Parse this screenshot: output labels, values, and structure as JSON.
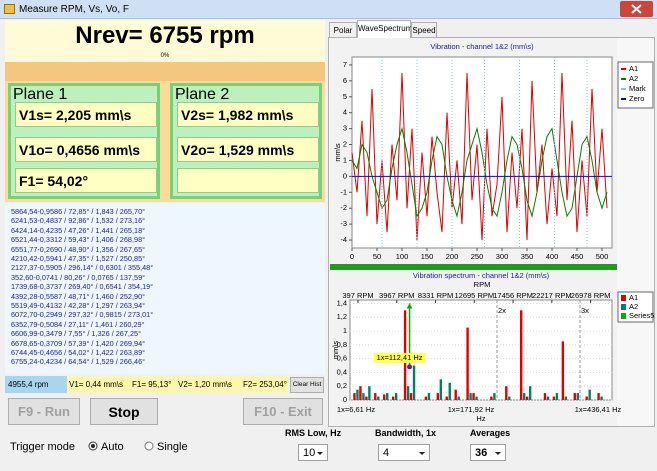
{
  "window": {
    "title": "Measure RPM, Vs, Vo, F"
  },
  "header": {
    "nrev": "Nrev= 6755 rpm",
    "progress": "0%"
  },
  "plane1": {
    "title": "Plane 1",
    "fields": [
      "V1s= 2,205 mm\\s",
      "V1o= 0,4656 mm\\s",
      "F1= 54,02°"
    ]
  },
  "plane2": {
    "title": "Plane 2",
    "fields": [
      "V2s= 1,982 mm\\s",
      "V2o= 1,529 mm\\s"
    ]
  },
  "history": [
    "5864,54-0,9586 / 72,85° / 1,843 / 265,70°",
    "6241,53-0,4837 / 92,86° / 1,532 / 273,16°",
    "6424,14-0,4235 / 47,26° / 1,441 / 265,18°",
    "6521,44-0,3312 / 59,43° / 1,406 / 268,98°",
    "6551,77-0,2690 / 48,90° / 1,356 / 267,65°",
    "4210,42-0,5941 / 47,35° / 1,527 / 250,85°",
    "2127,37-0,5905 / 296,14° / 0,6301 / 355,48°",
    "352,60-0,0741 / 80,26° / 0,0765 / 137,59°",
    "1739,68-0,3737 / 269,40° / 0,6541 / 354,19°",
    "4392,28-0,5587 / 48,71° / 1,460 / 252,90°",
    "5519,49-0,4132 / 42,28° / 1,297 / 263,94°",
    "6072,70-0,2949 / 297,32° / 0,9815 / 273,01°",
    "6352,79-0,5084 / 27,11° / 1,461 / 260,29°",
    "6606,99-0,3479 / 7,55° / 1,326 / 267,25°",
    "6678,65-0,3709 / 57,39° / 1,420 / 269,94°",
    "6744,45-0,4656 / 54,02° / 1,422 / 263,89°",
    "6755,24-0,4234 / 64,54° / 1,529 / 266,46°"
  ],
  "status": {
    "rpm": "4955,4 rpm",
    "v1": "V1= 0,44 mm\\s",
    "f1": "F1= 95,13°",
    "v2": "V2= 1,20 mm\\s",
    "f2": "F2= 253,04°",
    "clear": "Clear Hist"
  },
  "buttons": {
    "run": "F9 - Run",
    "stop": "Stop",
    "exit": "F10 - Exit"
  },
  "controls": {
    "trigger_label": "Trigger mode",
    "auto": "Auto",
    "single": "Single",
    "rms_label": "RMS Low, Hz",
    "rms_value": "10",
    "bandwidth_label": "Bandwidth, 1x",
    "bandwidth_value": "4",
    "averages_label": "Averages",
    "averages_value": "36"
  },
  "tabs": [
    "Polar",
    "WaveSpectrum",
    "Speed"
  ],
  "wave_chart": {
    "type": "line",
    "title": "Vibration - channel 1&2 (mm\\s)",
    "y_label": "mm\\s",
    "x_label": "RPM",
    "xlim": [
      0,
      520
    ],
    "ylim": [
      -4.5,
      7.5
    ],
    "xticks": [
      0,
      50,
      100,
      150,
      200,
      250,
      300,
      350,
      400,
      450,
      500
    ],
    "yticks": [
      -4,
      -3,
      -2,
      -1,
      0,
      1,
      2,
      3,
      4,
      5,
      6,
      7
    ],
    "x": [
      0,
      10,
      20,
      30,
      40,
      50,
      60,
      70,
      80,
      90,
      100,
      110,
      120,
      130,
      140,
      150,
      160,
      170,
      180,
      190,
      200,
      210,
      220,
      230,
      240,
      250,
      260,
      270,
      280,
      290,
      300,
      310,
      320,
      330,
      340,
      350,
      360,
      370,
      380,
      390,
      400,
      410,
      420,
      430,
      440,
      450,
      460,
      470,
      480,
      490,
      500,
      510
    ],
    "series": [
      {
        "name": "A1",
        "color": "#e00000",
        "values": [
          1.5,
          -1,
          3.5,
          -2.5,
          5.5,
          -3,
          1,
          -3.5,
          2,
          -1.5,
          6.5,
          -2,
          3,
          -4,
          1.5,
          -2.5,
          2.5,
          -1,
          -3.5,
          4,
          -2,
          1,
          -3,
          6.5,
          -1.5,
          2,
          -4,
          3,
          -2.5,
          -0.5,
          5,
          -3.5,
          1.5,
          -2,
          3,
          -4,
          6,
          -1,
          2,
          -3,
          0.5,
          -2.5,
          6.5,
          -1.5,
          3.5,
          -3.5,
          1,
          -2.5,
          5.5,
          -1,
          3,
          -2
        ]
      },
      {
        "name": "A2",
        "color": "#008000",
        "values": [
          1,
          0.5,
          2,
          1.5,
          0,
          -1,
          -2,
          -1.5,
          0.5,
          2,
          3,
          1.5,
          -0.5,
          -2.5,
          -2,
          -1,
          1,
          2.5,
          2,
          0,
          -1.5,
          -2.5,
          -1,
          1,
          2,
          3,
          1.5,
          -0.5,
          -2,
          -2.5,
          -1,
          1,
          2.5,
          2,
          0.5,
          -1.5,
          -2.5,
          -1,
          1,
          2.5,
          3,
          1,
          -1,
          -2.5,
          -2,
          0,
          2,
          2.5,
          1,
          -1,
          -2,
          -1
        ]
      },
      {
        "name": "Mark",
        "color": "#8fc0f0",
        "x": [
          60,
          130,
          200,
          265,
          335,
          405,
          470
        ]
      },
      {
        "name": "Zero",
        "color": "#0000ff",
        "value": 0
      }
    ]
  },
  "spectrum_chart": {
    "type": "bar",
    "title": "Vibration spectrum - channel 1&2 (mm\\s)",
    "x_label": "Hz",
    "top_labels": [
      "397 RPM",
      "3967 RPM",
      "8331 RPM",
      "12695 RPM",
      "17456 RPM",
      "22217 RPM",
      "26978 RPM"
    ],
    "bottom_labels": [
      "1x=6,61 Hz",
      "1x=171,92 Hz",
      "1x=436,41 Hz"
    ],
    "annotation": "1x=112,41 Hz",
    "harmonics": [
      "2x",
      "3x"
    ],
    "xlim": [
      0,
      440
    ],
    "ylim": [
      0,
      1.45
    ],
    "yticks": [
      0,
      {
        "value": 0.2,
        "label": "0,2"
      },
      {
        "value": 0.4,
        "label": "0,4"
      },
      {
        "value": 0.6,
        "label": "0,6"
      },
      {
        "value": 0.8,
        "label": "0,8"
      },
      {
        "value": 1,
        "label": "1"
      },
      {
        "value": 1.2,
        "label": "1,2"
      },
      {
        "value": 1.4,
        "label": "1,4"
      }
    ],
    "x": [
      10,
      20,
      30,
      45,
      60,
      75,
      95,
      105,
      130,
      150,
      165,
      180,
      200,
      210,
      240,
      265,
      290,
      300,
      330,
      345,
      360,
      380,
      400,
      420
    ],
    "series": [
      {
        "name": "A1",
        "color": "#e00000",
        "values": [
          0.1,
          0.2,
          0.05,
          0.1,
          0.08,
          0.05,
          1.3,
          0.1,
          0.05,
          0.1,
          0.05,
          0.15,
          1.05,
          0.1,
          0.05,
          0.2,
          1.3,
          0.05,
          0.1,
          0.05,
          0.85,
          0.1,
          0.05,
          0.1
        ]
      },
      {
        "name": "A2",
        "color": "#008060",
        "values": [
          0.15,
          0.1,
          0.2,
          0.05,
          0.1,
          0.1,
          0.2,
          0.5,
          0.1,
          0.3,
          0.25,
          0.05,
          0.1,
          0.05,
          0.1,
          0.05,
          0.1,
          0.2,
          0.05,
          0.1,
          0.05,
          0.1,
          0.15,
          0.05
        ]
      },
      {
        "name": "Series5",
        "color": "#00b000",
        "x": [
          100,
          100
        ],
        "values": [
          0.48,
          1.4
        ]
      }
    ]
  }
}
